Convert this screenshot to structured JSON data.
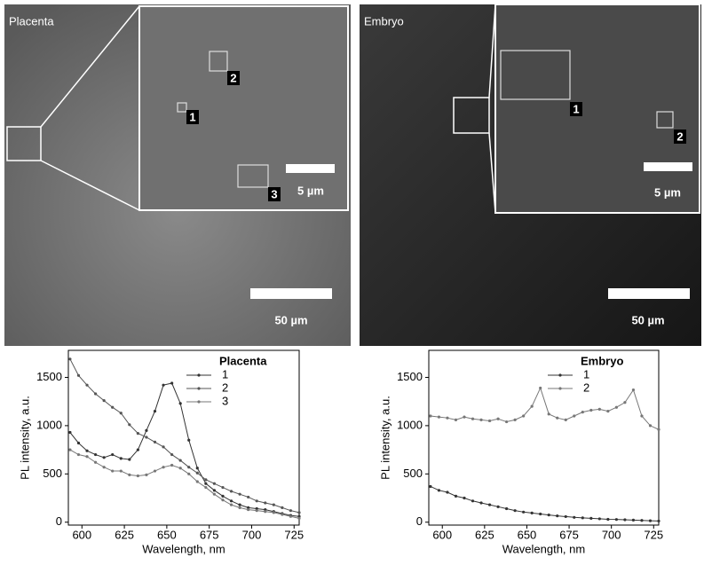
{
  "panels": [
    {
      "label": "Placenta",
      "scale_bar": "50 µm",
      "inset_scale_bar": "5 µm",
      "rois": [
        "1",
        "2",
        "3"
      ]
    },
    {
      "label": "Embryo",
      "scale_bar": "50 µm",
      "inset_scale_bar": "5 µm",
      "rois": [
        "1",
        "2"
      ]
    }
  ],
  "chart_data": [
    {
      "type": "line",
      "legend_title": "Placenta",
      "legend": "upper right",
      "x_label": "Wavelength, nm",
      "y_label": "PL intensity, a.u.",
      "x": [
        593,
        598,
        603,
        608,
        613,
        618,
        623,
        628,
        633,
        638,
        643,
        648,
        653,
        658,
        663,
        668,
        673,
        678,
        683,
        688,
        693,
        698,
        703,
        708,
        713,
        718,
        723,
        728
      ],
      "series": [
        {
          "name": "1",
          "color": "#333333",
          "values": [
            930,
            820,
            740,
            700,
            670,
            700,
            660,
            650,
            750,
            950,
            1150,
            1420,
            1440,
            1230,
            850,
            560,
            400,
            330,
            270,
            220,
            180,
            150,
            140,
            130,
            110,
            90,
            70,
            60
          ]
        },
        {
          "name": "2",
          "color": "#555555",
          "values": [
            1690,
            1520,
            1420,
            1330,
            1260,
            1190,
            1130,
            1010,
            920,
            880,
            830,
            780,
            700,
            640,
            570,
            510,
            440,
            400,
            360,
            320,
            290,
            260,
            220,
            200,
            180,
            150,
            120,
            100
          ]
        },
        {
          "name": "3",
          "color": "#777777",
          "values": [
            750,
            700,
            680,
            620,
            570,
            530,
            530,
            490,
            480,
            490,
            530,
            570,
            590,
            560,
            500,
            420,
            360,
            290,
            230,
            180,
            150,
            130,
            120,
            110,
            100,
            80,
            60,
            40
          ]
        }
      ],
      "xlim": [
        592,
        728
      ],
      "ylim": [
        -30,
        1780
      ],
      "xticks": [
        600,
        625,
        650,
        675,
        700,
        725
      ],
      "yticks": [
        0,
        500,
        1000,
        1500
      ]
    },
    {
      "type": "line",
      "legend_title": "Embryo",
      "legend": "upper right",
      "x_label": "Wavelength, nm",
      "y_label": "PL intensity, a.u.",
      "x": [
        593,
        598,
        603,
        608,
        613,
        618,
        623,
        628,
        633,
        638,
        643,
        648,
        653,
        658,
        663,
        668,
        673,
        678,
        683,
        688,
        693,
        698,
        703,
        708,
        713,
        718,
        723,
        728
      ],
      "series": [
        {
          "name": "1",
          "color": "#333333",
          "values": [
            370,
            330,
            310,
            270,
            250,
            220,
            200,
            180,
            160,
            140,
            120,
            105,
            95,
            85,
            75,
            65,
            58,
            50,
            45,
            40,
            35,
            30,
            28,
            25,
            22,
            18,
            15,
            12
          ]
        },
        {
          "name": "2",
          "color": "#777777",
          "values": [
            1100,
            1090,
            1080,
            1060,
            1090,
            1070,
            1060,
            1050,
            1070,
            1040,
            1060,
            1100,
            1200,
            1390,
            1120,
            1080,
            1060,
            1100,
            1140,
            1160,
            1170,
            1150,
            1190,
            1240,
            1370,
            1100,
            1000,
            960
          ]
        }
      ],
      "xlim": [
        592,
        728
      ],
      "ylim": [
        -30,
        1780
      ],
      "xticks": [
        600,
        625,
        650,
        675,
        700,
        725
      ],
      "yticks": [
        0,
        500,
        1000,
        1500
      ]
    }
  ]
}
